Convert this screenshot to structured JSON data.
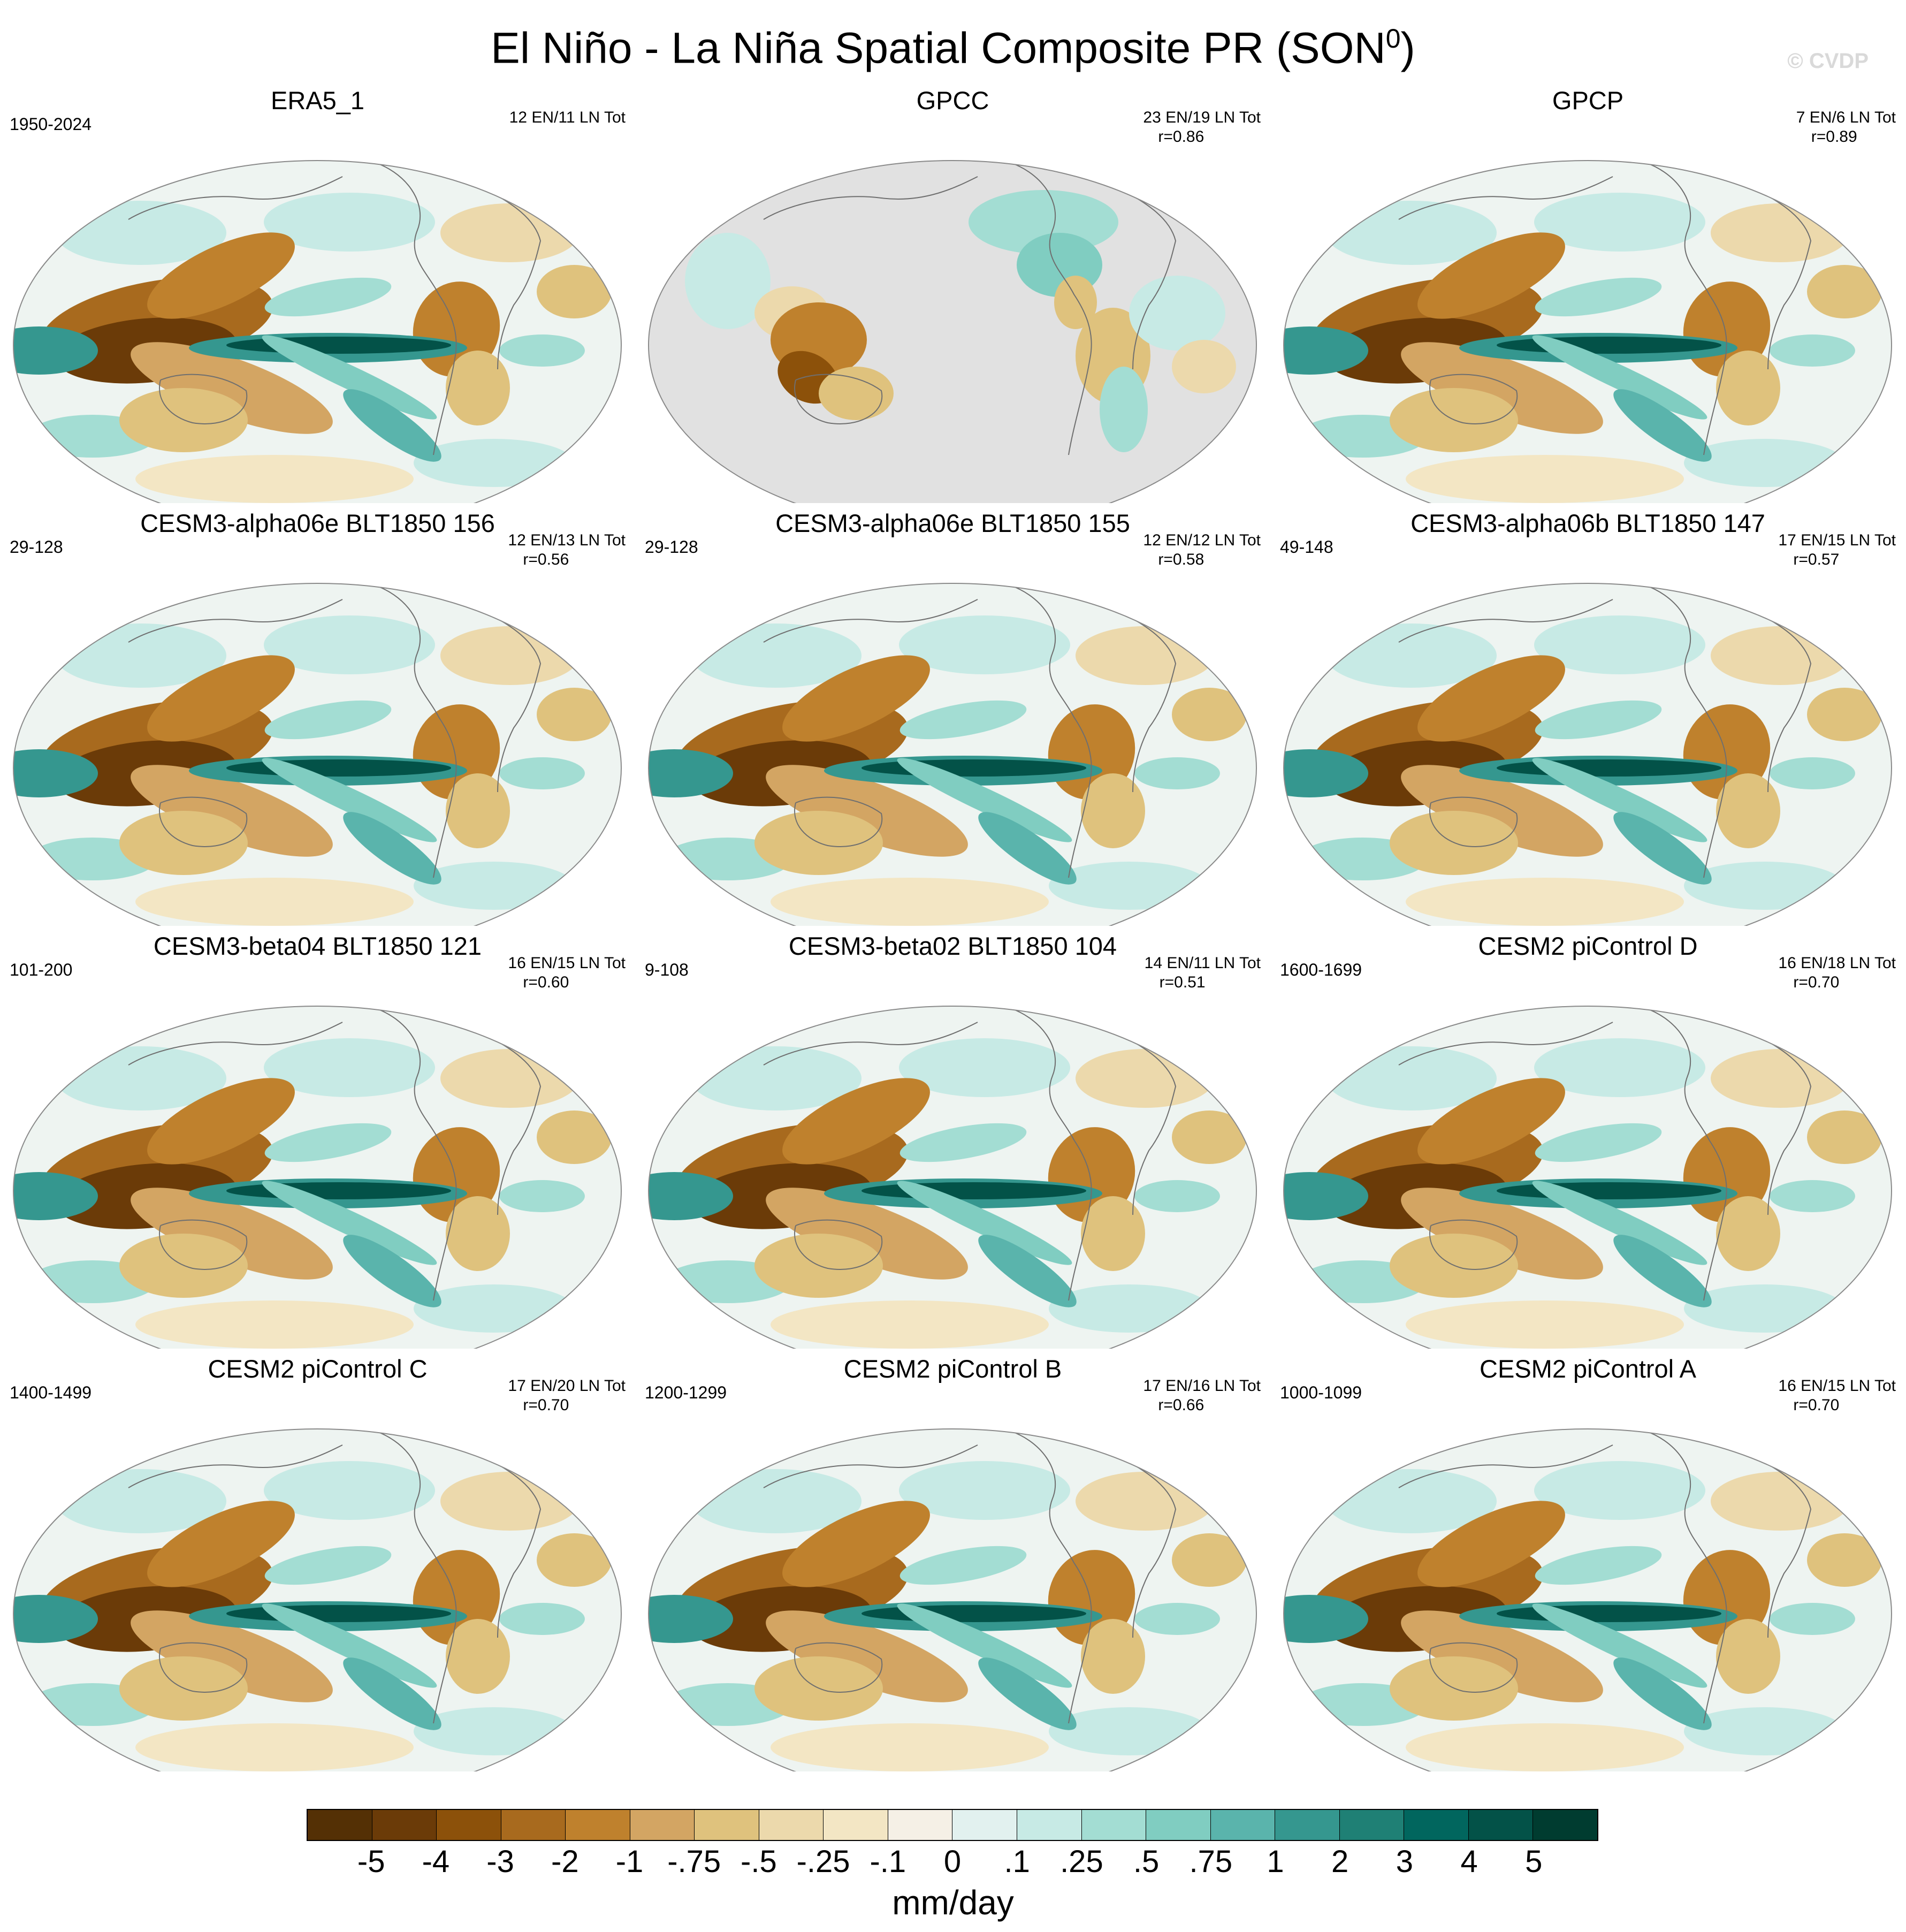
{
  "title": {
    "main": "El Niño - La Niña Spatial Composite PR (SON",
    "superscript": "0",
    "close": ")"
  },
  "watermark": "© CVDP",
  "panels": [
    {
      "name": "ERA5_1",
      "years": "1950-2024",
      "counts": "12 EN/11 LN Tot",
      "r": "",
      "grey_ocean": false
    },
    {
      "name": "GPCC",
      "years": "",
      "counts": "23 EN/19 LN Tot",
      "r": "r=0.86",
      "grey_ocean": true
    },
    {
      "name": "GPCP",
      "years": "",
      "counts": "7 EN/6 LN Tot",
      "r": "r=0.89",
      "grey_ocean": false
    },
    {
      "name": "CESM3-alpha06e BLT1850 156",
      "years": "29-128",
      "counts": "12 EN/13 LN Tot",
      "r": "r=0.56",
      "grey_ocean": false
    },
    {
      "name": "CESM3-alpha06e BLT1850 155",
      "years": "29-128",
      "counts": "12 EN/12 LN Tot",
      "r": "r=0.58",
      "grey_ocean": false
    },
    {
      "name": "CESM3-alpha06b BLT1850 147",
      "years": "49-148",
      "counts": "17 EN/15 LN Tot",
      "r": "r=0.57",
      "grey_ocean": false
    },
    {
      "name": "CESM3-beta04 BLT1850 121",
      "years": "101-200",
      "counts": "16 EN/15 LN Tot",
      "r": "r=0.60",
      "grey_ocean": false
    },
    {
      "name": "CESM3-beta02 BLT1850 104",
      "years": "9-108",
      "counts": "14 EN/11 LN Tot",
      "r": "r=0.51",
      "grey_ocean": false
    },
    {
      "name": "CESM2 piControl D",
      "years": "1600-1699",
      "counts": "16 EN/18 LN Tot",
      "r": "r=0.70",
      "grey_ocean": false
    },
    {
      "name": "CESM2 piControl C",
      "years": "1400-1499",
      "counts": "17 EN/20 LN Tot",
      "r": "r=0.70",
      "grey_ocean": false
    },
    {
      "name": "CESM2 piControl B",
      "years": "1200-1299",
      "counts": "17 EN/16 LN Tot",
      "r": "r=0.66",
      "grey_ocean": false
    },
    {
      "name": "CESM2 piControl A",
      "years": "1000-1099",
      "counts": "16 EN/15 LN Tot",
      "r": "r=0.70",
      "grey_ocean": false
    }
  ],
  "colorbar": {
    "colors": [
      "#543005",
      "#6b3b08",
      "#8c510a",
      "#a86a1e",
      "#bf812d",
      "#d3a563",
      "#dfc27d",
      "#ecd9ac",
      "#f3e6c4",
      "#f5f0e6",
      "#e2f1ef",
      "#c7eae5",
      "#a3ddd3",
      "#80cdc1",
      "#5ab4ac",
      "#35978f",
      "#1f8075",
      "#01665e",
      "#035248",
      "#003c30"
    ],
    "labels": [
      "-5",
      "-4",
      "-3",
      "-2",
      "-1",
      "-.75",
      "-.5",
      "-.25",
      "-.1",
      "0",
      ".1",
      ".25",
      ".5",
      ".75",
      "1",
      "2",
      "3",
      "4",
      "5"
    ],
    "units": "mm/day"
  }
}
